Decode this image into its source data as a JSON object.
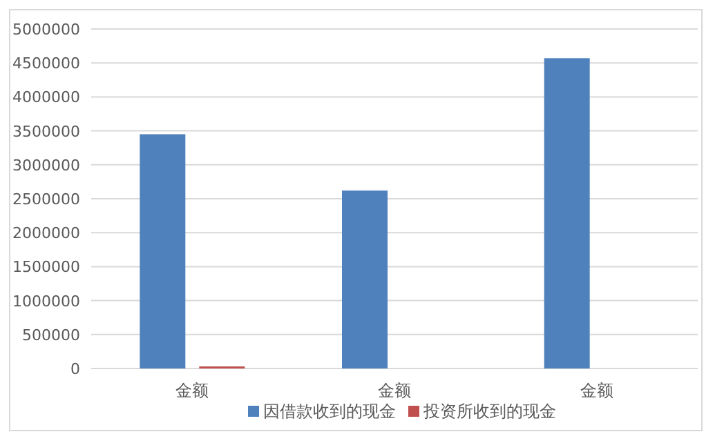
{
  "chart_data": {
    "type": "bar",
    "categories": [
      "金额",
      "金额",
      "金额"
    ],
    "series": [
      {
        "name": "因借款收到的现金",
        "color": "#4f81bd",
        "values": [
          3450000,
          2620000,
          4570000
        ]
      },
      {
        "name": "投资所收到的现金",
        "color": "#c0504d",
        "values": [
          30000,
          0,
          0
        ]
      }
    ],
    "ylim": [
      0,
      5000000
    ],
    "yticks": [
      0,
      500000,
      1000000,
      1500000,
      2000000,
      2500000,
      3000000,
      3500000,
      4000000,
      4500000,
      5000000
    ],
    "grid": "y",
    "legend": "bottom"
  }
}
